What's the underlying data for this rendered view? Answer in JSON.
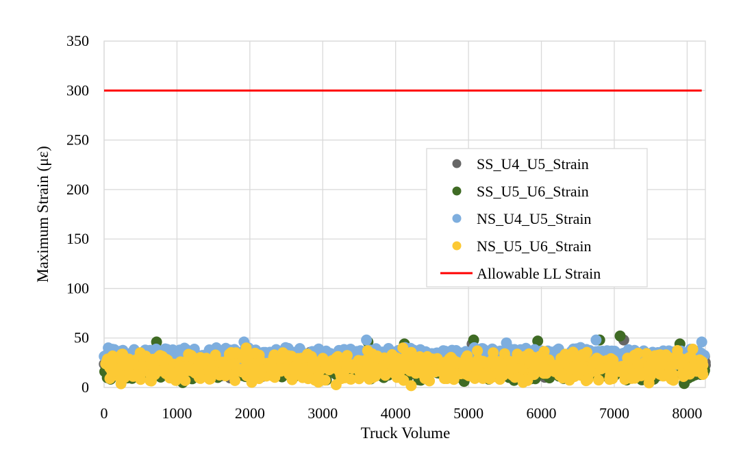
{
  "chart_data": {
    "type": "scatter",
    "title": "",
    "xlabel": "Truck Volume",
    "ylabel": "Maximum Strain (με)",
    "xlim": [
      0,
      8250
    ],
    "ylim": [
      0,
      350
    ],
    "x_ticks": [
      "0",
      "1000",
      "2000",
      "3000",
      "4000",
      "5000",
      "6000",
      "7000",
      "8000"
    ],
    "y_ticks": [
      "0",
      "50",
      "100",
      "150",
      "200",
      "250",
      "300",
      "350"
    ],
    "grid": true,
    "legend_position": "center-right",
    "series": [
      {
        "name": "SS_U4_U5_Strain",
        "color": "#666666",
        "marker": "circle",
        "x_range": [
          0,
          8250
        ],
        "typical_range": [
          8,
          38
        ],
        "peaks": [
          {
            "x": 7130,
            "y": 48
          },
          {
            "x": 5050,
            "y": 44
          }
        ]
      },
      {
        "name": "SS_U5_U6_Strain",
        "color": "#3f6b24",
        "marker": "circle",
        "x_range": [
          0,
          8250
        ],
        "typical_range": [
          3,
          38
        ],
        "peaks": [
          {
            "x": 720,
            "y": 46
          },
          {
            "x": 3620,
            "y": 46
          },
          {
            "x": 4120,
            "y": 44
          },
          {
            "x": 5070,
            "y": 48
          },
          {
            "x": 5950,
            "y": 47
          },
          {
            "x": 6800,
            "y": 48
          },
          {
            "x": 7080,
            "y": 52
          },
          {
            "x": 7900,
            "y": 44
          },
          {
            "x": 7960,
            "y": 4
          }
        ]
      },
      {
        "name": "NS_U4_U5_Strain",
        "color": "#7eaede",
        "marker": "circle",
        "x_range": [
          0,
          8250
        ],
        "typical_range": [
          20,
          43
        ],
        "peaks": [
          {
            "x": 1920,
            "y": 46
          },
          {
            "x": 3600,
            "y": 48
          },
          {
            "x": 5520,
            "y": 45
          },
          {
            "x": 6750,
            "y": 48
          },
          {
            "x": 8200,
            "y": 46
          }
        ]
      },
      {
        "name": "NS_U5_U6_Strain",
        "color": "#fcc934",
        "marker": "circle",
        "x_range": [
          0,
          8250
        ],
        "typical_range": [
          1,
          40
        ],
        "peaks": [
          {
            "x": 1950,
            "y": 40
          },
          {
            "x": 4100,
            "y": 40
          }
        ]
      },
      {
        "name": "Allowable LL Strain",
        "color": "#ff0000",
        "marker": "line",
        "x": [
          0,
          8200
        ],
        "y": [
          300,
          300
        ]
      }
    ]
  }
}
